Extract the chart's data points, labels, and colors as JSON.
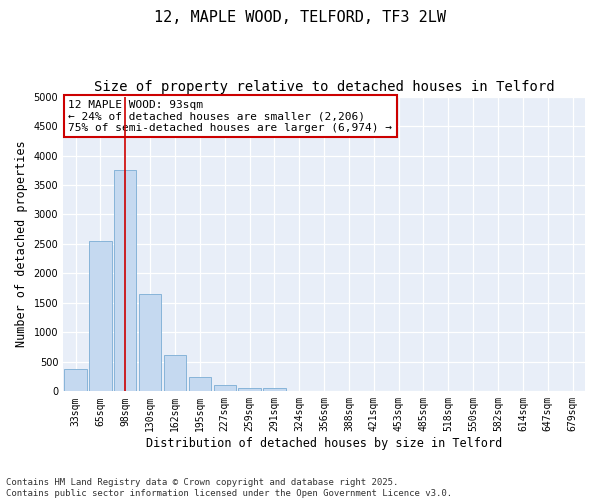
{
  "title_line1": "12, MAPLE WOOD, TELFORD, TF3 2LW",
  "title_line2": "Size of property relative to detached houses in Telford",
  "xlabel": "Distribution of detached houses by size in Telford",
  "ylabel": "Number of detached properties",
  "categories": [
    "33sqm",
    "65sqm",
    "98sqm",
    "130sqm",
    "162sqm",
    "195sqm",
    "227sqm",
    "259sqm",
    "291sqm",
    "324sqm",
    "356sqm",
    "388sqm",
    "421sqm",
    "453sqm",
    "485sqm",
    "518sqm",
    "550sqm",
    "582sqm",
    "614sqm",
    "647sqm",
    "679sqm"
  ],
  "values": [
    380,
    2550,
    3760,
    1650,
    620,
    240,
    100,
    50,
    50,
    0,
    0,
    0,
    0,
    0,
    0,
    0,
    0,
    0,
    0,
    0,
    0
  ],
  "bar_color": "#c5d9f0",
  "bar_edge_color": "#7aadd4",
  "vline_x_index": 2,
  "vline_color": "#cc0000",
  "annotation_text": "12 MAPLE WOOD: 93sqm\n← 24% of detached houses are smaller (2,206)\n75% of semi-detached houses are larger (6,974) →",
  "annotation_box_facecolor": "#ffffff",
  "annotation_box_edgecolor": "#cc0000",
  "ylim": [
    0,
    5000
  ],
  "yticks": [
    0,
    500,
    1000,
    1500,
    2000,
    2500,
    3000,
    3500,
    4000,
    4500,
    5000
  ],
  "fig_background": "#ffffff",
  "plot_background": "#e8eef8",
  "grid_color": "#ffffff",
  "title_fontsize": 11,
  "subtitle_fontsize": 10,
  "axis_label_fontsize": 8.5,
  "tick_fontsize": 7,
  "annotation_fontsize": 8,
  "footer_fontsize": 6.5,
  "footer_line1": "Contains HM Land Registry data © Crown copyright and database right 2025.",
  "footer_line2": "Contains public sector information licensed under the Open Government Licence v3.0."
}
